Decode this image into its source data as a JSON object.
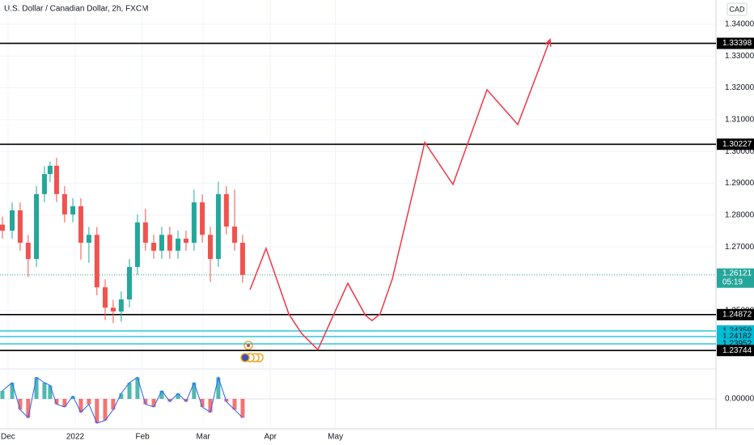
{
  "chart_data": {
    "type": "candlestick",
    "title": "U.S. Dollar / Canadian Dollar, 2h, FXCM",
    "currency": "CAD",
    "up_color": "#26a69a",
    "down_color": "#ef5350",
    "x": [
      -2.6,
      1.9,
      5.6,
      9.3,
      13.1,
      16.8,
      19.4,
      22.4,
      26.1,
      29.9,
      33.6,
      37.3,
      41.0,
      44.8,
      48.5,
      52.2,
      56.0,
      59.7,
      63.4,
      67.2,
      70.9,
      74.6,
      78.4,
      82.1,
      85.8,
      89.6,
      93.3,
      97.0,
      100.7,
      104.5,
      108.2
    ],
    "open": [
      1.277,
      1.2751,
      1.2815,
      1.2713,
      1.2662,
      1.2866,
      1.2929,
      1.2955,
      1.2866,
      1.2802,
      1.2828,
      1.2713,
      1.2738,
      1.2573,
      1.2509,
      1.2497,
      1.2535,
      1.2637,
      1.2777,
      1.2713,
      1.2688,
      1.2738,
      1.2688,
      1.2726,
      1.2713,
      1.284,
      1.2738,
      1.2662,
      1.2866,
      1.2764,
      1.2713
    ],
    "high": [
      1.2795,
      1.284,
      1.284,
      1.2738,
      1.2891,
      1.2954,
      1.2968,
      1.298,
      1.2891,
      1.2853,
      1.2853,
      1.2763,
      1.2763,
      1.2598,
      1.2534,
      1.256,
      1.2662,
      1.2802,
      1.282,
      1.2738,
      1.2763,
      1.2763,
      1.2751,
      1.2751,
      1.288,
      1.2865,
      1.2763,
      1.2905,
      1.2891,
      1.288,
      1.2738
    ],
    "low": [
      1.2726,
      1.2726,
      1.2688,
      1.2605,
      1.2637,
      1.2841,
      1.2904,
      1.2841,
      1.2777,
      1.2777,
      1.266,
      1.265,
      1.2548,
      1.247,
      1.246,
      1.2465,
      1.251,
      1.2612,
      1.2688,
      1.2663,
      1.2663,
      1.2663,
      1.2663,
      1.2688,
      1.2688,
      1.2713,
      1.259,
      1.2637,
      1.2739,
      1.2688,
      1.2587
    ],
    "close": [
      1.2751,
      1.2815,
      1.2713,
      1.2662,
      1.2866,
      1.2929,
      1.2955,
      1.2866,
      1.2802,
      1.2828,
      1.2713,
      1.2738,
      1.2573,
      1.2509,
      1.2497,
      1.2535,
      1.2637,
      1.2777,
      1.2713,
      1.2688,
      1.2738,
      1.2688,
      1.2726,
      1.2713,
      1.284,
      1.2738,
      1.2662,
      1.2866,
      1.2764,
      1.2713,
      1.26121
    ],
    "xlim": [
      -3.7,
      326.5
    ],
    "xticks": [
      {
        "value": 0,
        "label": "Dec"
      },
      {
        "value": 31,
        "label": "2022"
      },
      {
        "value": 62,
        "label": "Feb"
      },
      {
        "value": 90,
        "label": "Mar"
      },
      {
        "value": 121,
        "label": "Apr"
      },
      {
        "value": 151,
        "label": "May"
      }
    ],
    "ylim": [
      1.2319,
      1.3476
    ],
    "yticks": [
      {
        "value": 1.34,
        "label": "1.34000"
      },
      {
        "value": 1.33,
        "label": "1.33000"
      },
      {
        "value": 1.32,
        "label": "1.32000"
      },
      {
        "value": 1.31,
        "label": "1.31000"
      },
      {
        "value": 1.3,
        "label": "1.30000"
      },
      {
        "value": 1.29,
        "label": "1.29000"
      },
      {
        "value": 1.28,
        "label": "1.28000"
      },
      {
        "value": 1.27,
        "label": "1.27000"
      },
      {
        "value": 1.25,
        "label": "1.25000"
      }
    ],
    "levels": [
      {
        "value": 1.33398,
        "color": "#000000"
      },
      {
        "value": 1.30227,
        "color": "#000000"
      },
      {
        "value": 1.24872,
        "color": "#000000"
      },
      {
        "value": 1.24359,
        "color": "#00bcd4"
      },
      {
        "value": 1.24182,
        "color": "#00bcd4"
      },
      {
        "value": 1.23952,
        "color": "#00bcd4"
      },
      {
        "value": 1.23744,
        "color": "#000000"
      }
    ],
    "projection": {
      "color": "#f23645",
      "x": [
        111.6,
        119.0,
        129.5,
        135.4,
        142.9,
        156.7,
        164.9,
        167.9,
        171.6,
        177.2,
        192.2,
        205.2,
        220.9,
        235.1,
        250.0
      ],
      "values": [
        1.25654,
        1.26952,
        1.24891,
        1.2428,
        1.23771,
        1.25858,
        1.2484,
        1.24687,
        1.24891,
        1.25985,
        1.30285,
        1.28962,
        1.31939,
        1.30845,
        1.33517
      ]
    },
    "last_price": {
      "value": 1.26121,
      "countdown": "05:19",
      "color": "#26a69a"
    },
    "oscillator": {
      "values": [
        0.003,
        0.006,
        -0.004,
        -0.007,
        0.008,
        0.006,
        0.005,
        -0.002,
        -0.003,
        0.001,
        -0.005,
        -0.002,
        -0.009,
        -0.008,
        -0.004,
        0.002,
        0.006,
        0.008,
        -0.002,
        -0.003,
        0.003,
        -0.001,
        0.002,
        -0.001,
        0.006,
        -0.003,
        -0.005,
        0.008,
        -0.001,
        -0.004,
        -0.007
      ],
      "ylim": [
        -0.0105,
        0.0105
      ],
      "yticks": [
        {
          "value": 0,
          "label": "0.00000"
        }
      ]
    }
  }
}
